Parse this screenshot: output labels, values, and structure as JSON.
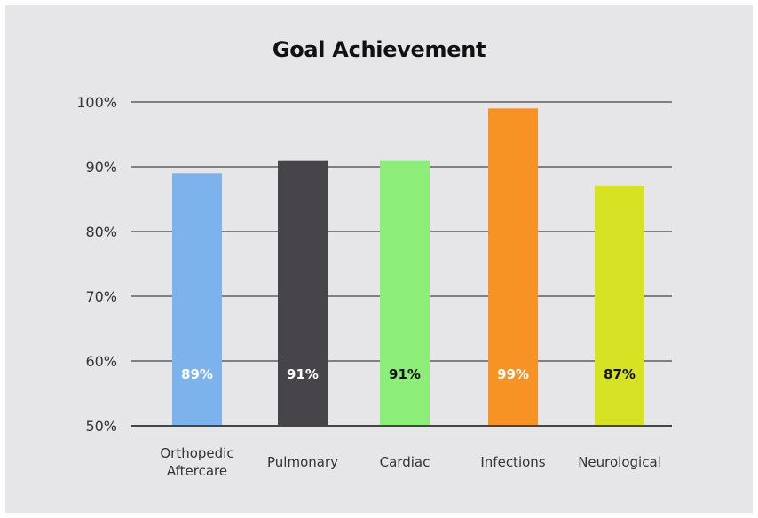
{
  "chart_data": {
    "type": "bar",
    "title": "Goal Achievement",
    "categories": [
      [
        "Orthopedic",
        "Aftercare"
      ],
      [
        "Pulmonary"
      ],
      [
        "Cardiac"
      ],
      [
        "Infections"
      ],
      [
        "Neurological"
      ]
    ],
    "values": [
      89,
      91,
      91,
      99,
      87
    ],
    "data_labels": [
      "89%",
      "91%",
      "91%",
      "99%",
      "87%"
    ],
    "colors": [
      "#7db3ed",
      "#474549",
      "#8ded79",
      "#f79325",
      "#d8e224"
    ],
    "label_colors": [
      "#ffffff",
      "#ffffff",
      "#111111",
      "#ffffff",
      "#111111"
    ],
    "ylim": [
      50,
      100
    ],
    "yticks": [
      50,
      60,
      70,
      80,
      90,
      100
    ],
    "ytick_labels": [
      "50%",
      "60%",
      "70%",
      "80%",
      "90%",
      "100%"
    ],
    "grid": true,
    "xlabel": "",
    "ylabel": ""
  }
}
